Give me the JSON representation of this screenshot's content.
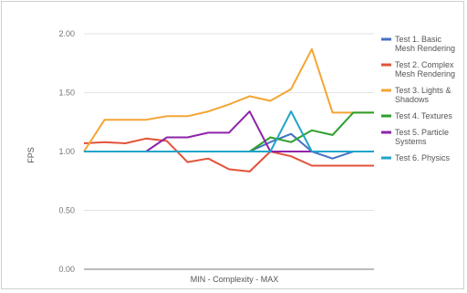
{
  "chart_data": {
    "type": "line",
    "title": "",
    "xlabel": "MIN - Complexity - MAX",
    "ylabel": "FPS",
    "ylim": [
      0,
      2
    ],
    "yticks": [
      "0.00",
      "0.50",
      "1.00",
      "1.50",
      "2.00"
    ],
    "x": [
      1,
      2,
      3,
      4,
      5,
      6,
      7,
      8,
      9,
      10,
      11,
      12,
      13,
      14,
      15
    ],
    "grid": true,
    "legend_position": "right",
    "series": [
      {
        "name": "Test 1. Basic Mesh Rendering",
        "color": "#4472c4",
        "values": [
          1.0,
          1.0,
          1.0,
          1.0,
          1.0,
          1.0,
          1.0,
          1.0,
          1.0,
          1.08,
          1.15,
          1.0,
          0.94,
          1.0,
          1.0
        ]
      },
      {
        "name": "Test 2. Complex Mesh Rendering",
        "color": "#e2523a",
        "values": [
          1.07,
          1.08,
          1.07,
          1.11,
          1.09,
          0.91,
          0.94,
          0.85,
          0.83,
          1.0,
          0.96,
          0.88,
          0.88,
          0.88,
          0.88
        ]
      },
      {
        "name": "Test 3. Lights & Shadows",
        "color": "#f4a533",
        "values": [
          1.0,
          1.27,
          1.27,
          1.27,
          1.3,
          1.3,
          1.34,
          1.4,
          1.47,
          1.43,
          1.53,
          1.87,
          1.33,
          1.33,
          1.33
        ]
      },
      {
        "name": "Test 4. Textures",
        "color": "#2ca02c",
        "values": [
          1.0,
          1.0,
          1.0,
          1.0,
          1.0,
          1.0,
          1.0,
          1.0,
          1.0,
          1.12,
          1.08,
          1.18,
          1.14,
          1.33,
          1.33
        ]
      },
      {
        "name": "Test 5. Particle Systems",
        "color": "#8e24aa",
        "values": [
          1.0,
          1.0,
          1.0,
          1.0,
          1.12,
          1.12,
          1.16,
          1.16,
          1.34,
          1.0,
          1.0,
          1.0,
          1.0,
          1.0,
          1.0
        ]
      },
      {
        "name": "Test 6. Physics",
        "color": "#1fa4c9",
        "values": [
          1.0,
          1.0,
          1.0,
          1.0,
          1.0,
          1.0,
          1.0,
          1.0,
          1.0,
          1.0,
          1.34,
          1.0,
          1.0,
          1.0,
          1.0
        ]
      }
    ]
  }
}
